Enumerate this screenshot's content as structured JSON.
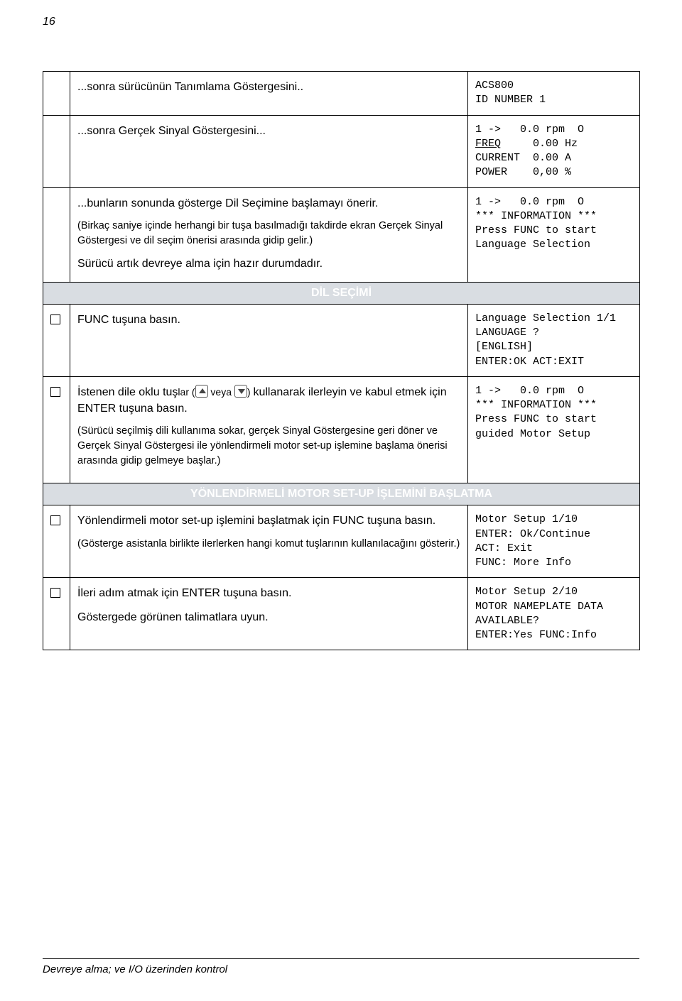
{
  "page_number": "16",
  "footer": "Devreye alma; ve I/O üzerinden kontrol",
  "arrows": {
    "or": "veya"
  },
  "rows": [
    {
      "check": false,
      "left_paras": [
        "...sonra sürücünün Tanımlama Göstergesini.."
      ],
      "right_mono": "ACS800\nID NUMBER 1"
    },
    {
      "check": false,
      "left_paras": [
        "...sonra Gerçek Sinyal Göstergesini..."
      ],
      "right_mono_html": "1 -&gt;   0.0 rpm  O\n<span class=\"u\">FREQ</span>     0.00 Hz\nCURRENT  0.00 A\nPOWER    0,00 %"
    },
    {
      "check": false,
      "left_paras": [
        "...bunların sonunda gösterge Dil Seçimine başlamayı önerir."
      ],
      "left_notes": [
        "(Birkaç saniye içinde herhangi bir tuşa basılmadığı takdirde ekran Gerçek Sinyal Göstergesi ve dil seçim önerisi arasında gidip gelir.)"
      ],
      "left_tail": [
        "Sürücü artık devreye alma için hazır durumdadır."
      ],
      "right_mono": "1 ->   0.0 rpm  O\n*** INFORMATION ***\nPress FUNC to start\nLanguage Selection"
    },
    {
      "section": "DİL SEÇİMİ"
    },
    {
      "check": true,
      "left_paras": [
        " FUNC tuşuna basın."
      ],
      "right_mono": "Language Selection 1/1\nLANGUAGE ?\n[ENGLISH]\nENTER:OK ACT:EXIT"
    },
    {
      "check": true,
      "arrow_sentence": {
        "pre": "İstenen dile oklu tuş",
        "small": "lar (",
        "mid": ") ",
        "post": " kullanarak ilerleyin ve kabul etmek için ENTER tuşuna basın."
      },
      "left_notes": [
        "(Sürücü seçilmiş dili kullanıma sokar, gerçek Sinyal Göstergesine geri döner ve Gerçek Sinyal Göstergesi ile yönlendirmeli motor set-up işlemine başlama önerisi arasında gidip gelmeye başlar.)"
      ],
      "right_mono": "1 ->   0.0 rpm  O\n*** INFORMATION ***\nPress FUNC to start\nguided Motor Setup"
    },
    {
      "section": "YÖNLENDİRMELİ MOTOR SET-UP İŞLEMİNİ BAŞLATMA"
    },
    {
      "check": true,
      "left_paras": [
        "Yönlendirmeli motor set-up işlemini başlatmak için FUNC tuşuna basın."
      ],
      "left_notes": [
        "(Gösterge asistanla birlikte ilerlerken hangi komut tuşlarının kullanılacağını gösterir.)"
      ],
      "right_mono": "Motor Setup 1/10\nENTER: Ok/Continue\nACT: Exit\nFUNC: More Info"
    },
    {
      "check": true,
      "left_paras": [
        "İleri adım atmak için ENTER tuşuna basın.",
        "Göstergede görünen talimatlara uyun."
      ],
      "right_mono": "Motor Setup 2/10\nMOTOR NAMEPLATE DATA\nAVAILABLE?\nENTER:Yes FUNC:Info"
    }
  ]
}
